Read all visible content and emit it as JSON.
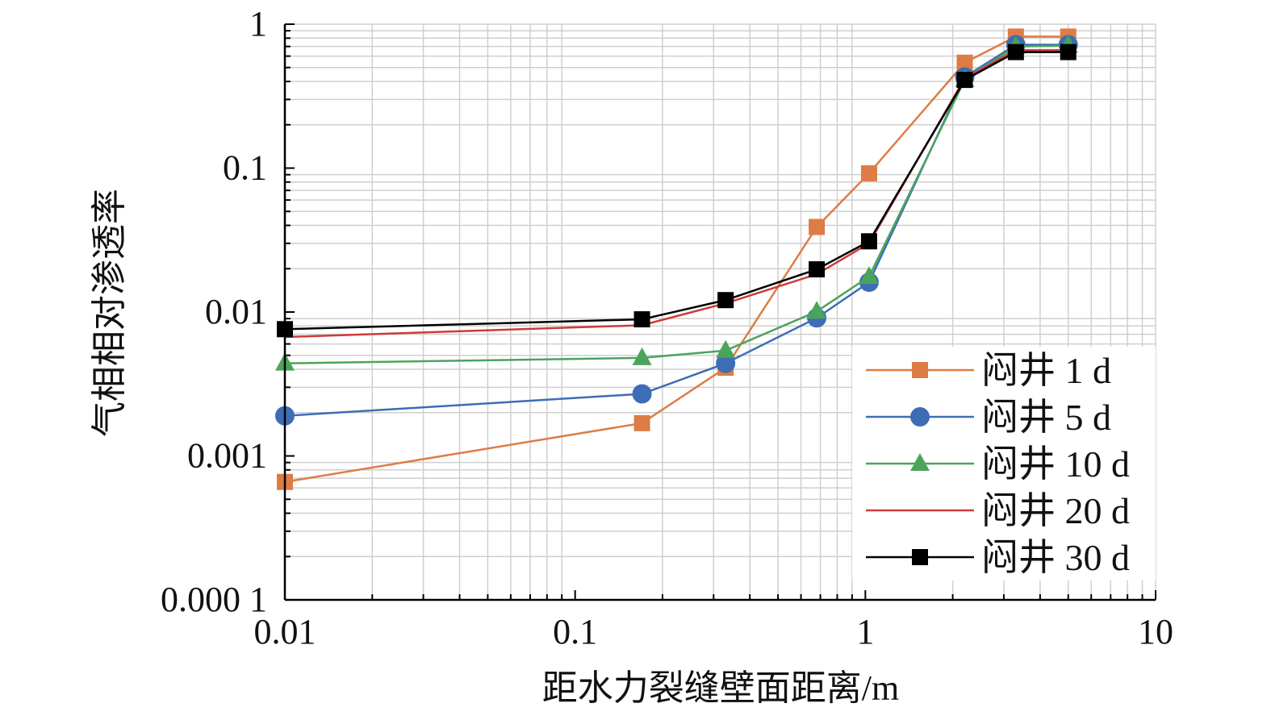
{
  "chart_data": {
    "type": "line",
    "title": "",
    "xlabel": "距水力裂缝壁面距离/m",
    "ylabel": "气相相对渗透率",
    "xscale": "log",
    "yscale": "log",
    "xlim": [
      0.01,
      10
    ],
    "ylim": [
      0.0001,
      1
    ],
    "grid": true,
    "legend_position": "bottom-right",
    "x_ticks": [
      0.01,
      0.1,
      1,
      10
    ],
    "x_tick_labels": [
      "0.01",
      "0.1",
      "1",
      "10"
    ],
    "y_ticks": [
      1,
      0.1,
      0.01,
      0.001,
      0.0001
    ],
    "y_tick_labels": [
      "1",
      "0.1",
      "0.01",
      "0.001",
      "0.000 1"
    ],
    "x": [
      0.01,
      0.17,
      0.33,
      0.68,
      1.03,
      2.2,
      3.3,
      5.0
    ],
    "series": [
      {
        "name": "闷井 1 d",
        "color": "#DD7C45",
        "marker": "square",
        "values": [
          0.00066,
          0.00169,
          0.0041,
          0.039,
          0.092,
          0.54,
          0.82,
          0.82
        ]
      },
      {
        "name": "闷井 5 d",
        "color": "#3D6DB5",
        "marker": "circle",
        "values": [
          0.0019,
          0.0027,
          0.0044,
          0.0091,
          0.0161,
          0.43,
          0.72,
          0.72
        ]
      },
      {
        "name": "闷井 10 d",
        "color": "#4CA35A",
        "marker": "triangle",
        "values": [
          0.0044,
          0.0048,
          0.0054,
          0.0101,
          0.0176,
          0.41,
          0.7,
          0.71
        ]
      },
      {
        "name": "闷井 20 d",
        "color": "#D0393A",
        "marker": "none",
        "values": [
          0.0067,
          0.0081,
          0.0115,
          0.0183,
          0.03,
          0.42,
          0.66,
          0.66
        ]
      },
      {
        "name": "闷井 30 d",
        "color": "#000000",
        "marker": "square",
        "values": [
          0.0076,
          0.0089,
          0.0121,
          0.0198,
          0.031,
          0.41,
          0.64,
          0.64
        ]
      }
    ]
  }
}
